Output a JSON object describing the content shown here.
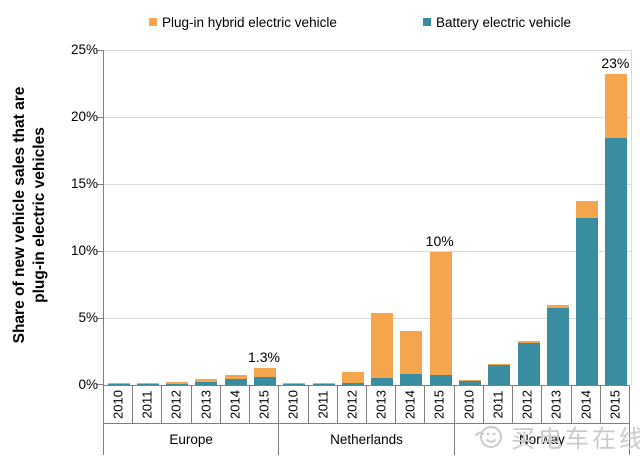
{
  "legend": {
    "items": [
      {
        "label": "Plug-in hybrid electric vehicle",
        "color": "#F5A54E",
        "icon": "orange-square-swatch"
      },
      {
        "label": "Battery electric vehicle",
        "color": "#3A8CA1",
        "icon": "teal-square-swatch"
      }
    ]
  },
  "watermark": {
    "text": "买电车在线",
    "icon": "smiley-logo"
  },
  "chart_data": {
    "type": "bar",
    "stacked": true,
    "title": "",
    "ylabel": "Share of new vehicle sales that are plug-in electric vehicles",
    "ylabel_lines": [
      "Share of new vehicle sales that are",
      "plug-in electric vehicles"
    ],
    "xlabel": "",
    "ylim": [
      0,
      25
    ],
    "ytick_values": [
      0,
      5,
      10,
      15,
      20,
      25
    ],
    "ytick_labels": [
      "0%",
      "5%",
      "10%",
      "15%",
      "20%",
      "25%"
    ],
    "grid": true,
    "legend_position": "top",
    "years": [
      "2010",
      "2011",
      "2012",
      "2013",
      "2014",
      "2015"
    ],
    "series_names": {
      "bev": "Battery electric vehicle",
      "phev": "Plug-in hybrid electric vehicle"
    },
    "groups": [
      {
        "label": "Europe",
        "bev": [
          0.03,
          0.05,
          0.1,
          0.25,
          0.45,
          0.6
        ],
        "phev": [
          0.02,
          0.05,
          0.1,
          0.2,
          0.3,
          0.7
        ]
      },
      {
        "label": "Netherlands",
        "bev": [
          0.02,
          0.05,
          0.15,
          0.55,
          0.8,
          0.75
        ],
        "phev": [
          0.03,
          0.1,
          0.8,
          4.85,
          3.2,
          9.15
        ]
      },
      {
        "label": "Norway",
        "bev": [
          0.3,
          1.5,
          3.1,
          5.75,
          12.5,
          18.4
        ],
        "phev": [
          0.02,
          0.05,
          0.2,
          0.2,
          1.2,
          4.8
        ]
      }
    ],
    "annotations": [
      {
        "group_index": 0,
        "year_index": 5,
        "text": "1.3%"
      },
      {
        "group_index": 1,
        "year_index": 5,
        "text": "10%"
      },
      {
        "group_index": 2,
        "year_index": 5,
        "text": "23%"
      }
    ],
    "colors": {
      "phev": "#F5A54E",
      "bev": "#3A8CA1",
      "gridline": "#D9D9D9",
      "axis": "#7F7F7F",
      "watermark": "#CBCBCB"
    }
  }
}
